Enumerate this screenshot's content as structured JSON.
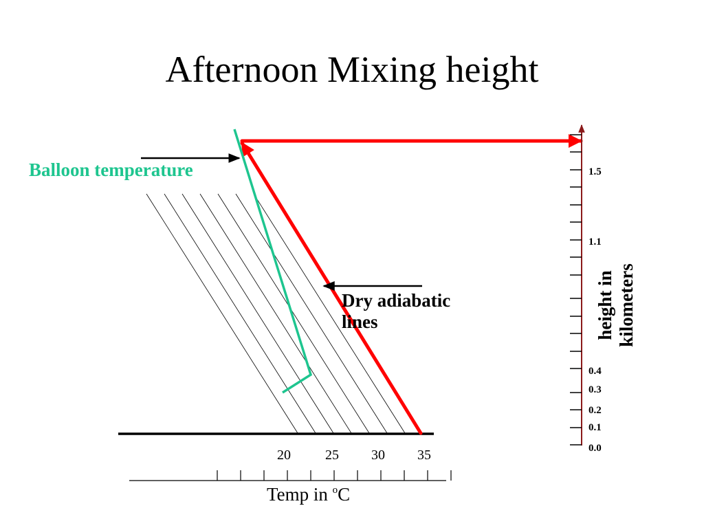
{
  "title": "Afternoon Mixing height",
  "annotations": {
    "balloon_label": "Balloon temperature",
    "dry_adiabatic_line1": "Dry adiabatic",
    "dry_adiabatic_line2": "lines"
  },
  "axes": {
    "x_label": "Temp in ",
    "x_label_sup": "o",
    "x_label_unit": "C",
    "y_label_line1": "height in",
    "y_label_line2": "kilometers",
    "x_tick_labels": [
      "20",
      "25",
      "30",
      "35"
    ],
    "y_tick_labels": [
      "1.5",
      "1.1",
      "0.4",
      "0.3",
      "0.2",
      "0.1",
      "0.0"
    ]
  },
  "colors": {
    "balloon": "#1ec58f",
    "mixing_path": "#ff0000",
    "axis": "#000000",
    "y_axis_arrow": "#8b1a1a"
  }
}
